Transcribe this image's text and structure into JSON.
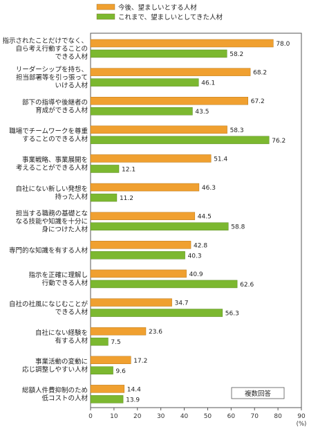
{
  "chart_data": {
    "type": "bar",
    "orientation": "horizontal",
    "legend_position": "top-left",
    "xlim": [
      0,
      90
    ],
    "x_ticks": [
      0,
      10,
      20,
      30,
      40,
      50,
      60,
      70,
      80,
      90
    ],
    "unit": "(%)",
    "note": "複数回答",
    "grid": false,
    "categories": [
      [
        "指示されたことだけでなく、",
        "自ら考え行動することの",
        "できる人材"
      ],
      [
        "リーダーシップを持ち、",
        "担当部署等を引っ張って",
        "いける人材"
      ],
      [
        "部下の指導や後継者の",
        "育成ができる人材"
      ],
      [
        "職場でチームワークを尊重",
        "することのできる人材"
      ],
      [
        "事業戦略、事業展開を",
        "考えることができる人材"
      ],
      [
        "自社にない新しい発想を",
        "持った人材"
      ],
      [
        "担当する職務の基礎とな",
        "なる技能や知識を十分に",
        "身につけた人材"
      ],
      [
        "専門的な知識を有する人材"
      ],
      [
        "指示を正確に理解し",
        "行動できる人材"
      ],
      [
        "自社の社風になじむことが",
        "できる人材"
      ],
      [
        "自社にない経験を",
        "有する人材"
      ],
      [
        "事業活動の変動に",
        "応じ調整しやすい人材"
      ],
      [
        "総額人件費抑制のため",
        "低コストの人材"
      ]
    ],
    "series": [
      {
        "name": "今後、望ましいとする人材",
        "color": "#f0a030",
        "values": [
          78.0,
          68.2,
          67.2,
          58.3,
          51.4,
          46.3,
          44.5,
          42.8,
          40.9,
          34.7,
          23.6,
          17.2,
          14.4
        ]
      },
      {
        "name": "これまで、望ましいとしてきた人材",
        "color": "#7cb830",
        "values": [
          58.2,
          46.1,
          43.5,
          76.2,
          12.1,
          11.2,
          58.8,
          40.3,
          62.6,
          56.3,
          7.5,
          9.6,
          13.9
        ]
      }
    ]
  }
}
